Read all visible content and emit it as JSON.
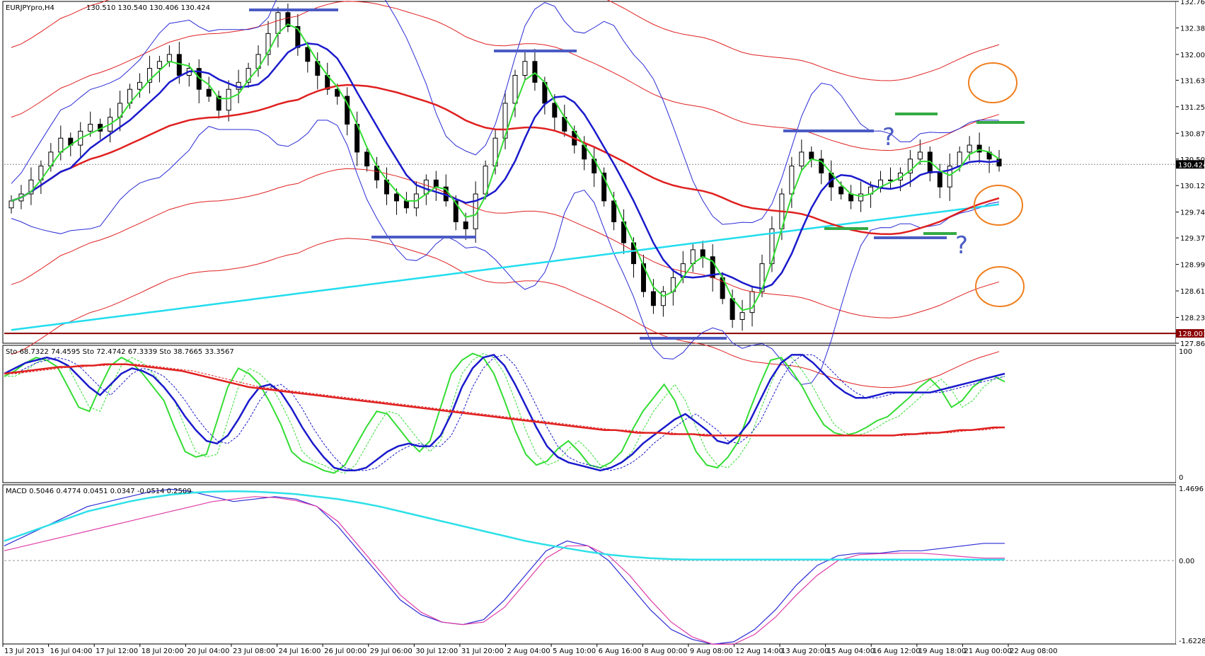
{
  "chart_data": {
    "type": "candlestick",
    "symbol_header": "EURJPYpro,H4",
    "ohlc_readout": "130.510 130.540 130.406 130.424",
    "price_axis": {
      "ticks": [
        "132.760",
        "132.380",
        "132.000",
        "131.630",
        "131.250",
        "130.870",
        "130.500",
        "130.120",
        "129.740",
        "129.370",
        "128.990",
        "128.610",
        "128.230",
        "127.860"
      ],
      "ylim": [
        127.86,
        132.76
      ],
      "current_price": "130.424",
      "support_label": "128.001"
    },
    "time_axis": {
      "labels": [
        "13 Jul 2013",
        "16 Jul 04:00",
        "17 Jul 12:00",
        "18 Jul 20:00",
        "20 Jul 04:00",
        "23 Jul 08:00",
        "24 Jul 16:00",
        "26 Jul 00:00",
        "29 Jul 06:00",
        "30 Jul 12:00",
        "31 Jul 20:00",
        "2 Aug 04:00",
        "5 Aug 10:00",
        "6 Aug 16:00",
        "8 Aug 00:00",
        "9 Aug 08:00",
        "12 Aug 14:00",
        "13 Aug 20:00",
        "15 Aug 04:00",
        "16 Aug 12:00",
        "19 Aug 18:00",
        "21 Aug 00:00",
        "22 Aug 08:00"
      ]
    },
    "price_series_close": [
      129.9,
      130.0,
      130.2,
      130.4,
      130.6,
      130.8,
      130.7,
      130.9,
      131.0,
      130.9,
      131.1,
      131.3,
      131.5,
      131.6,
      131.8,
      131.9,
      132.0,
      131.7,
      131.8,
      131.5,
      131.4,
      131.2,
      131.5,
      131.6,
      131.8,
      132.0,
      132.3,
      132.6,
      132.4,
      132.1,
      131.9,
      131.7,
      131.5,
      131.4,
      131.0,
      130.6,
      130.4,
      130.2,
      130.0,
      129.9,
      129.8,
      130.0,
      130.2,
      130.1,
      129.9,
      129.6,
      129.5,
      130.0,
      130.4,
      130.8,
      131.3,
      131.7,
      131.9,
      131.6,
      131.3,
      131.1,
      130.9,
      130.7,
      130.5,
      130.3,
      129.9,
      129.6,
      129.3,
      129.0,
      128.6,
      128.4,
      128.6,
      128.8,
      129.0,
      129.2,
      129.1,
      128.8,
      128.5,
      128.2,
      128.3,
      128.6,
      129.0,
      129.5,
      130.0,
      130.4,
      130.6,
      130.5,
      130.3,
      130.1,
      130.0,
      129.9,
      130.0,
      130.1,
      130.2,
      130.2,
      130.3,
      130.5,
      130.6,
      130.3,
      130.1,
      130.4,
      130.6,
      130.7,
      130.6,
      130.5,
      130.4
    ],
    "annotation_marks": [
      "?",
      "?"
    ],
    "sto_panel": {
      "header": "Sto 68.7322 74.4595  Sto 72.4742 67.3339  Sto 38.7665 33.3567",
      "ticks": [
        "100",
        "0"
      ],
      "ylim": [
        0,
        100
      ],
      "series": [
        {
          "color": "#33dd33",
          "values": [
            78,
            82,
            88,
            92,
            90,
            85,
            70,
            55,
            52,
            70,
            86,
            92,
            88,
            80,
            70,
            60,
            40,
            22,
            18,
            20,
            45,
            70,
            84,
            80,
            72,
            58,
            42,
            22,
            15,
            12,
            8,
            6,
            12,
            26,
            40,
            52,
            50,
            40,
            30,
            22,
            30,
            55,
            80,
            90,
            95,
            92,
            80,
            60,
            38,
            20,
            12,
            15,
            24,
            30,
            22,
            12,
            10,
            14,
            22,
            38,
            52,
            62,
            72,
            60,
            40,
            22,
            12,
            10,
            18,
            30,
            52,
            72,
            90,
            92,
            82,
            70,
            55,
            42,
            36,
            34,
            36,
            40,
            45,
            48,
            55,
            62,
            70,
            76,
            68,
            55,
            60,
            70,
            76,
            78,
            74
          ]
        },
        {
          "color": "#1a1acc",
          "values": [
            80,
            84,
            88,
            90,
            92,
            90,
            86,
            78,
            70,
            64,
            72,
            80,
            84,
            82,
            78,
            70,
            60,
            48,
            38,
            30,
            28,
            34,
            46,
            60,
            70,
            72,
            66,
            54,
            40,
            28,
            18,
            10,
            8,
            8,
            10,
            16,
            22,
            26,
            28,
            26,
            26,
            34,
            50,
            70,
            84,
            92,
            94,
            86,
            72,
            56,
            40,
            26,
            18,
            14,
            12,
            10,
            8,
            10,
            14,
            20,
            28,
            34,
            40,
            46,
            50,
            44,
            38,
            30,
            28,
            34,
            44,
            60,
            76,
            88,
            94,
            94,
            88,
            80,
            72,
            66,
            62,
            62,
            64,
            66,
            66,
            66,
            66,
            66,
            68,
            70,
            72,
            74,
            76,
            78,
            80
          ]
        },
        {
          "color": "#e02020",
          "values": [
            80,
            81,
            82,
            83,
            84,
            85,
            85,
            86,
            86,
            87,
            87,
            87,
            86,
            85,
            84,
            83,
            82,
            80,
            78,
            76,
            74,
            72,
            70,
            69,
            68,
            67,
            66,
            65,
            64,
            63,
            62,
            61,
            60,
            59,
            58,
            57,
            56,
            55,
            54,
            53,
            52,
            51,
            50,
            49,
            48,
            47,
            46,
            45,
            44,
            43,
            42,
            41,
            40,
            39,
            38,
            38,
            37,
            36,
            36,
            36,
            35,
            35,
            35,
            34,
            34,
            34,
            34,
            34,
            34,
            34,
            34,
            34,
            34,
            34,
            34,
            34,
            34,
            34,
            34,
            34,
            34,
            35,
            35,
            36,
            36,
            37,
            38,
            38,
            39,
            40,
            40
          ]
        }
      ]
    },
    "macd_panel": {
      "header": "MACD 0.5046 0.4774 0.0451 0.0347 -0.0514 0.2509",
      "ticks": [
        "1.4696",
        "0.00",
        "-1.6228"
      ],
      "ylim": [
        -1.6228,
        1.4696
      ],
      "series": [
        {
          "color": "#2b2bd6",
          "values": [
            0.3,
            0.5,
            0.7,
            0.9,
            1.1,
            1.2,
            1.3,
            1.4,
            1.45,
            1.4,
            1.3,
            1.2,
            1.25,
            1.3,
            1.25,
            1.1,
            0.7,
            0.2,
            -0.3,
            -0.8,
            -1.1,
            -1.25,
            -1.3,
            -1.2,
            -0.8,
            -0.3,
            0.2,
            0.4,
            0.3,
            0.0,
            -0.5,
            -1.0,
            -1.4,
            -1.6,
            -1.7,
            -1.65,
            -1.4,
            -1.0,
            -0.5,
            -0.1,
            0.1,
            0.15,
            0.15,
            0.2,
            0.2,
            0.25,
            0.3,
            0.35,
            0.35
          ]
        },
        {
          "color": "#e03ca8",
          "values": [
            0.2,
            0.3,
            0.4,
            0.5,
            0.6,
            0.7,
            0.8,
            0.9,
            1.0,
            1.1,
            1.2,
            1.25,
            1.3,
            1.28,
            1.22,
            1.1,
            0.8,
            0.3,
            -0.2,
            -0.7,
            -1.05,
            -1.25,
            -1.3,
            -1.25,
            -0.95,
            -0.45,
            0.05,
            0.3,
            0.3,
            0.1,
            -0.3,
            -0.8,
            -1.25,
            -1.55,
            -1.7,
            -1.7,
            -1.5,
            -1.15,
            -0.7,
            -0.3,
            0.0,
            0.12,
            0.14,
            0.15,
            0.15,
            0.12,
            0.08,
            0.05,
            0.05
          ]
        },
        {
          "color": "#2ee0e8",
          "values": [
            0.4,
            0.55,
            0.7,
            0.85,
            1.0,
            1.1,
            1.2,
            1.28,
            1.34,
            1.38,
            1.4,
            1.41,
            1.4,
            1.38,
            1.35,
            1.3,
            1.25,
            1.18,
            1.1,
            1.0,
            0.9,
            0.8,
            0.7,
            0.6,
            0.5,
            0.4,
            0.32,
            0.25,
            0.18,
            0.12,
            0.08,
            0.05,
            0.03,
            0.02,
            0.02,
            0.02,
            0.02,
            0.02,
            0.02,
            0.02,
            0.02,
            0.02,
            0.02,
            0.02,
            0.02,
            0.02,
            0.02,
            0.02,
            0.02
          ]
        }
      ]
    }
  }
}
